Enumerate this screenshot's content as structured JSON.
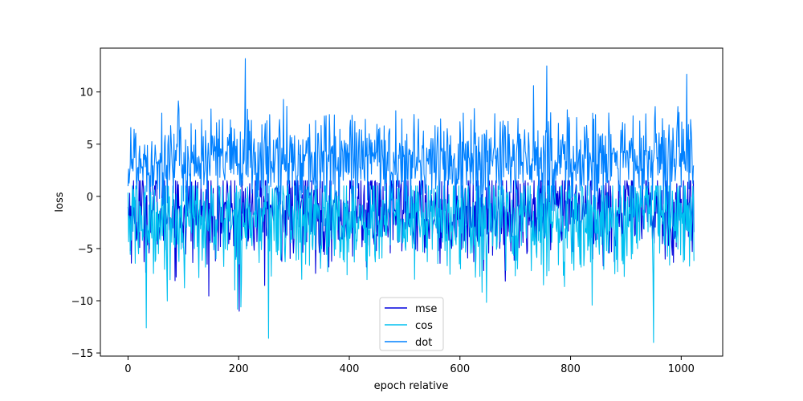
{
  "chart_data": {
    "type": "line",
    "xlabel": "epoch relative",
    "ylabel": "loss",
    "xlim": [
      -50,
      1075
    ],
    "ylim": [
      -15.3,
      14.2
    ],
    "x_ticks": [
      0,
      200,
      400,
      600,
      800,
      1000
    ],
    "y_ticks": [
      -15,
      -10,
      -5,
      0,
      5,
      10
    ],
    "x_tick_labels": [
      "0",
      "200",
      "400",
      "600",
      "800",
      "1000"
    ],
    "y_tick_labels": [
      "−15",
      "−10",
      "−5",
      "0",
      "5",
      "10"
    ],
    "grid": false,
    "legend_position": "bottom-center",
    "n_points": 1024,
    "series": [
      {
        "name": "mse",
        "color": "#0000dd",
        "mean": -1.5,
        "std": 2.3,
        "range": [
          -11.0,
          1.5
        ],
        "notable_points": [
          {
            "x": 201,
            "y": -11.0
          }
        ]
      },
      {
        "name": "cos",
        "color": "#00c0f0",
        "mean": -2.2,
        "std": 2.6,
        "range": [
          -14.0,
          1.0
        ],
        "notable_points": [
          {
            "x": 33,
            "y": -12.6
          },
          {
            "x": 254,
            "y": -13.6
          },
          {
            "x": 950,
            "y": -14.0
          }
        ]
      },
      {
        "name": "dot",
        "color": "#0080ff",
        "mean": 3.5,
        "std": 2.2,
        "range": [
          -2.0,
          13.2
        ],
        "notable_points": [
          {
            "x": 212,
            "y": 13.2
          },
          {
            "x": 757,
            "y": 12.5
          },
          {
            "x": 1010,
            "y": 11.7
          }
        ]
      }
    ]
  }
}
